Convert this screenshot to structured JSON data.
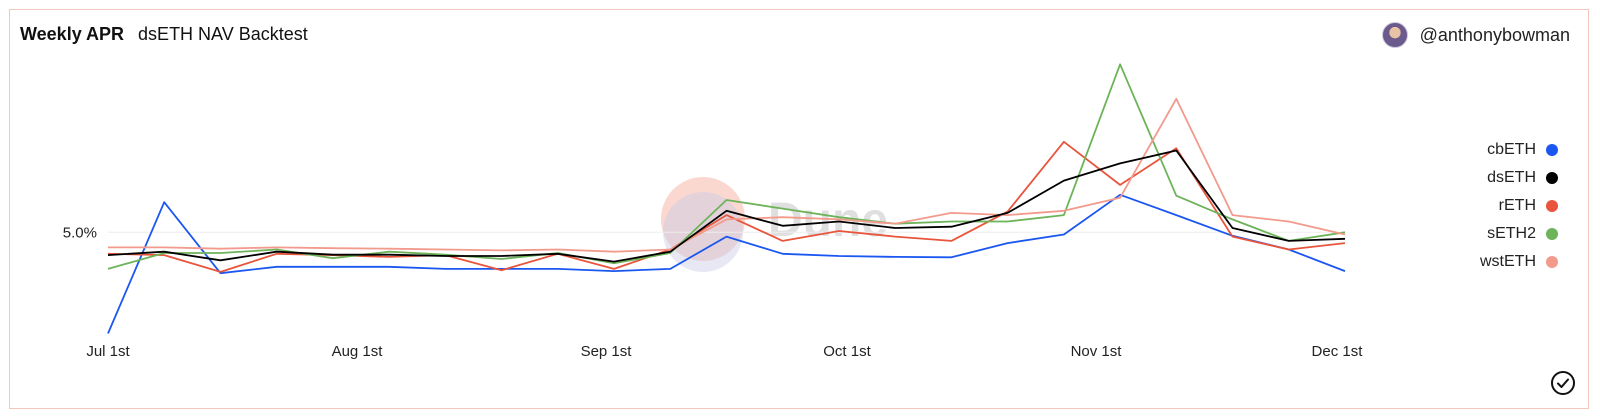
{
  "header": {
    "title": "Weekly APR",
    "subtitle": "dsETH NAV Backtest",
    "author": "@anthonybowman"
  },
  "watermark": "Dune",
  "chart_data": {
    "type": "line",
    "x": [
      "Jul 1st",
      "Jul 8th",
      "Jul 15th",
      "Jul 22nd",
      "Jul 29th",
      "Aug 5th",
      "Aug 12th",
      "Aug 19th",
      "Aug 26th",
      "Sep 2nd",
      "Sep 9th",
      "Sep 16th",
      "Sep 23rd",
      "Sep 30th",
      "Oct 7th",
      "Oct 14th",
      "Oct 21st",
      "Oct 28th",
      "Nov 4th",
      "Nov 11th",
      "Nov 18th",
      "Nov 25th",
      "Dec 2nd"
    ],
    "xticks": [
      "Jul 1st",
      "Aug 1st",
      "Sep 1st",
      "Oct 1st",
      "Nov 1st",
      "Dec 1st"
    ],
    "yticks": [
      "5.0%"
    ],
    "ylim": [
      2.5,
      9.0
    ],
    "grid": true,
    "legend_position": "right",
    "series": [
      {
        "name": "cbETH",
        "color": "#1a56f0",
        "values": [
          2.65,
          5.7,
          4.05,
          4.2,
          4.2,
          4.2,
          4.15,
          4.15,
          4.15,
          4.1,
          4.15,
          4.9,
          4.5,
          4.45,
          4.43,
          4.42,
          4.75,
          4.95,
          5.87,
          5.4,
          4.92,
          4.6,
          4.1
        ]
      },
      {
        "name": "dsETH",
        "color": "#000000",
        "values": [
          4.47,
          4.55,
          4.35,
          4.55,
          4.48,
          4.48,
          4.45,
          4.45,
          4.5,
          4.32,
          4.55,
          5.5,
          5.15,
          5.25,
          5.1,
          5.13,
          5.45,
          6.2,
          6.6,
          6.9,
          5.1,
          4.8,
          4.85
        ]
      },
      {
        "name": "rETH",
        "color": "#e8553c",
        "values": [
          4.5,
          4.47,
          4.08,
          4.5,
          4.47,
          4.43,
          4.47,
          4.12,
          4.5,
          4.15,
          4.6,
          5.4,
          4.8,
          5.03,
          4.9,
          4.8,
          5.48,
          7.1,
          6.1,
          6.95,
          4.9,
          4.6,
          4.75
        ]
      },
      {
        "name": "sETH2",
        "color": "#6db35a",
        "values": [
          4.15,
          4.52,
          4.52,
          4.6,
          4.4,
          4.55,
          4.48,
          4.38,
          4.52,
          4.28,
          4.52,
          5.75,
          5.55,
          5.35,
          5.2,
          5.25,
          5.25,
          5.4,
          8.9,
          5.85,
          5.3,
          4.8,
          5.0
        ]
      },
      {
        "name": "wstETH",
        "color": "#f29a8c",
        "values": [
          4.65,
          4.65,
          4.62,
          4.65,
          4.63,
          4.62,
          4.6,
          4.58,
          4.6,
          4.55,
          4.6,
          5.3,
          5.35,
          5.3,
          5.2,
          5.45,
          5.4,
          5.5,
          5.8,
          8.1,
          5.4,
          5.25,
          4.95
        ]
      }
    ]
  }
}
